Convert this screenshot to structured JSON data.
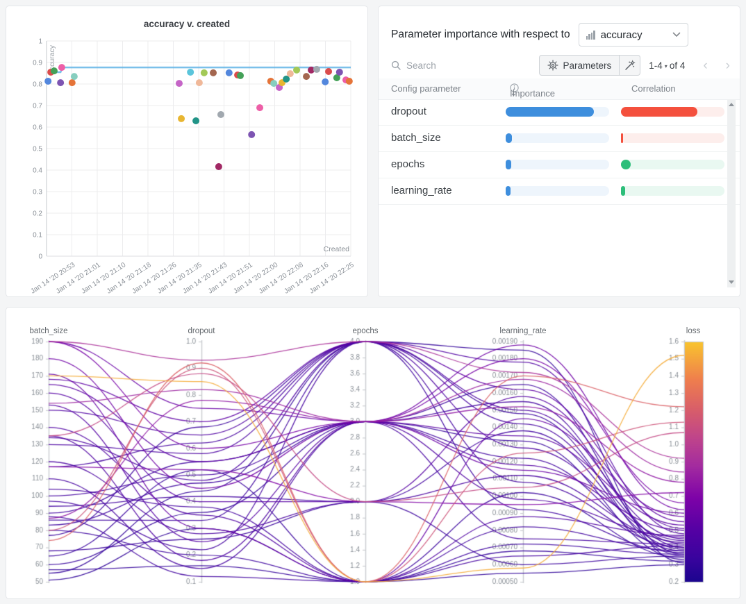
{
  "page": {
    "background": "#f4f5f6"
  },
  "scatter_panel": {
    "title": "accuracy v. created",
    "chart_data": {
      "type": "scatter",
      "title": "accuracy v. created",
      "xlabel": "Created",
      "ylabel": "accuracy",
      "ylim": [
        0,
        1
      ],
      "y_ticks": [
        0,
        0.1,
        0.2,
        0.3,
        0.4,
        0.5,
        0.6,
        0.7,
        0.8,
        0.9,
        1
      ],
      "x_tick_labels": [
        "Jan 14 '20 20:53",
        "Jan 14 '20 21:01",
        "Jan 14 '20 21:10",
        "Jan 14 '20 21:18",
        "Jan 14 '20 21:26",
        "Jan 14 '20 21:35",
        "Jan 14 '20 21:43",
        "Jan 14 '20 21:51",
        "Jan 14 '20 22:00",
        "Jan 14 '20 22:08",
        "Jan 14 '20 22:16",
        "Jan 14 '20 22:25"
      ],
      "best_accuracy_line": {
        "color": "#64b5e6",
        "points": [
          [
            0.012,
            0.855
          ],
          [
            0.046,
            0.855
          ],
          [
            0.052,
            0.877
          ],
          [
            1.0,
            0.877
          ]
        ]
      },
      "points": [
        {
          "x": 0.005,
          "accuracy": 0.813,
          "color": "#5387DD"
        },
        {
          "x": 0.014,
          "accuracy": 0.855,
          "color": "#DB4C4C"
        },
        {
          "x": 0.025,
          "accuracy": 0.861,
          "color": "#44A158"
        },
        {
          "x": 0.05,
          "accuracy": 0.877,
          "color": "#ED5FA7"
        },
        {
          "x": 0.046,
          "accuracy": 0.806,
          "color": "#7D54B2"
        },
        {
          "x": 0.084,
          "accuracy": 0.806,
          "color": "#E57439"
        },
        {
          "x": 0.091,
          "accuracy": 0.835,
          "color": "#87CEBF"
        },
        {
          "x": 0.436,
          "accuracy": 0.803,
          "color": "#C565C7"
        },
        {
          "x": 0.443,
          "accuracy": 0.639,
          "color": "#E8B632"
        },
        {
          "x": 0.491,
          "accuracy": 0.629,
          "color": "#229487"
        },
        {
          "x": 0.473,
          "accuracy": 0.855,
          "color": "#5BC5DB"
        },
        {
          "x": 0.502,
          "accuracy": 0.806,
          "color": "#F0B899"
        },
        {
          "x": 0.518,
          "accuracy": 0.852,
          "color": "#A3C957"
        },
        {
          "x": 0.548,
          "accuracy": 0.852,
          "color": "#A46750"
        },
        {
          "x": 0.573,
          "accuracy": 0.658,
          "color": "#A1A8AF"
        },
        {
          "x": 0.6,
          "accuracy": 0.852,
          "color": "#5387DD"
        },
        {
          "x": 0.628,
          "accuracy": 0.842,
          "color": "#DB4C4C"
        },
        {
          "x": 0.637,
          "accuracy": 0.839,
          "color": "#44A158"
        },
        {
          "x": 0.566,
          "accuracy": 0.416,
          "color": "#A12864"
        },
        {
          "x": 0.701,
          "accuracy": 0.69,
          "color": "#ED5FA7"
        },
        {
          "x": 0.674,
          "accuracy": 0.565,
          "color": "#7D54B2"
        },
        {
          "x": 0.737,
          "accuracy": 0.813,
          "color": "#E57439"
        },
        {
          "x": 0.747,
          "accuracy": 0.803,
          "color": "#87CEBF"
        },
        {
          "x": 0.765,
          "accuracy": 0.784,
          "color": "#C565C7"
        },
        {
          "x": 0.774,
          "accuracy": 0.806,
          "color": "#E8B632"
        },
        {
          "x": 0.788,
          "accuracy": 0.823,
          "color": "#229487"
        },
        {
          "x": 0.801,
          "accuracy": 0.848,
          "color": "#F0B899"
        },
        {
          "x": 0.822,
          "accuracy": 0.865,
          "color": "#A3C957"
        },
        {
          "x": 0.854,
          "accuracy": 0.835,
          "color": "#A46750"
        },
        {
          "x": 0.87,
          "accuracy": 0.865,
          "color": "#A12864"
        },
        {
          "x": 0.888,
          "accuracy": 0.868,
          "color": "#A1A8AF"
        },
        {
          "x": 0.916,
          "accuracy": 0.81,
          "color": "#5387DD"
        },
        {
          "x": 0.927,
          "accuracy": 0.858,
          "color": "#DB4C4C"
        },
        {
          "x": 0.954,
          "accuracy": 0.829,
          "color": "#44A158"
        },
        {
          "x": 0.963,
          "accuracy": 0.855,
          "color": "#7D54B2"
        },
        {
          "x": 0.984,
          "accuracy": 0.819,
          "color": "#ED5FA7"
        },
        {
          "x": 0.995,
          "accuracy": 0.813,
          "color": "#E57439"
        }
      ]
    }
  },
  "importance_panel": {
    "title_prefix": "Parameter importance with respect to",
    "metric_selector": {
      "value": "accuracy"
    },
    "search": {
      "placeholder": "Search"
    },
    "parameters_button": {
      "label": "Parameters"
    },
    "pagination": {
      "range": "1-4",
      "caret": "▾",
      "of": "of 4",
      "prev": "‹",
      "next": "›"
    },
    "table": {
      "columns": [
        "Config parameter",
        "Importance",
        "Correlation"
      ],
      "sort_arrow": "↓",
      "importance_color": "#3e8edd",
      "importance_track": "#eef5fc",
      "positive_color": "#2dbe7a",
      "positive_track": "#e9f8f1",
      "negative_color": "#f4503d",
      "negative_track": "#fdeeec",
      "rows": [
        {
          "name": "dropout",
          "importance": 0.85,
          "correlation": -0.74
        },
        {
          "name": "batch_size",
          "importance": 0.06,
          "correlation": -0.02
        },
        {
          "name": "epochs",
          "importance": 0.055,
          "correlation": 0.095
        },
        {
          "name": "learning_rate",
          "importance": 0.05,
          "correlation": 0.04
        }
      ]
    }
  },
  "pcp_panel": {
    "chart_data": {
      "type": "parallel-coordinates",
      "color_metric": "loss",
      "axes": [
        {
          "name": "batch_size",
          "min": 50,
          "max": 190,
          "tick_step": 10,
          "decimals": 0
        },
        {
          "name": "dropout",
          "min": 0.1,
          "max": 1.0,
          "tick_step": 0.1,
          "decimals": 1
        },
        {
          "name": "epochs",
          "min": 1.0,
          "max": 4.0,
          "tick_step": 0.2,
          "decimals": 1
        },
        {
          "name": "learning_rate",
          "min": 0.0005,
          "max": 0.0019,
          "tick_step": 0.0001,
          "decimals": 5
        },
        {
          "name": "loss",
          "min": 0.2,
          "max": 1.6,
          "tick_step": 0.1,
          "decimals": 1
        }
      ],
      "colormap": [
        [
          0,
          "#1c058f"
        ],
        [
          0.1,
          "#3a049e"
        ],
        [
          0.22,
          "#5601a4"
        ],
        [
          0.35,
          "#7e03a8"
        ],
        [
          0.48,
          "#a32ba0"
        ],
        [
          0.6,
          "#c0458b"
        ],
        [
          0.72,
          "#d95f69"
        ],
        [
          0.84,
          "#ef7e4e"
        ],
        [
          1,
          "#f9c52e"
        ]
      ],
      "runs": [
        [
          170,
          0.85,
          1,
          0.00058,
          1.52
        ],
        [
          74,
          0.92,
          1,
          0.0017,
          1.22
        ],
        [
          80,
          0.9,
          1,
          0.00125,
          1.13
        ],
        [
          135,
          0.88,
          2,
          0.00105,
          1.07
        ],
        [
          190,
          0.93,
          4,
          0.00172,
          0.92
        ],
        [
          154,
          0.82,
          3,
          0.00168,
          0.84
        ],
        [
          87,
          0.78,
          3,
          0.00152,
          0.78
        ],
        [
          117,
          0.52,
          2,
          0.00095,
          0.72
        ],
        [
          190,
          0.6,
          3,
          0.0018,
          0.66
        ],
        [
          180,
          0.45,
          3,
          0.00188,
          0.62
        ],
        [
          190,
          0.75,
          3,
          0.00115,
          0.6
        ],
        [
          171,
          0.3,
          1,
          0.00145,
          0.58
        ],
        [
          168,
          0.7,
          4,
          0.00162,
          0.55
        ],
        [
          165,
          0.55,
          3,
          0.00135,
          0.53
        ],
        [
          160,
          0.4,
          2,
          0.00158,
          0.51
        ],
        [
          153,
          0.25,
          3,
          0.00118,
          0.5
        ],
        [
          150,
          0.65,
          4,
          0.00178,
          0.48
        ],
        [
          140,
          0.35,
          1,
          0.00088,
          0.47
        ],
        [
          135,
          0.18,
          3,
          0.00098,
          0.46
        ],
        [
          134,
          0.48,
          4,
          0.0015,
          0.45
        ],
        [
          130,
          0.58,
          4,
          0.00128,
          0.44
        ],
        [
          120,
          0.28,
          2,
          0.00112,
          0.43
        ],
        [
          117,
          0.62,
          4,
          0.00142,
          0.42
        ],
        [
          110,
          0.15,
          3,
          0.00075,
          0.42
        ],
        [
          104,
          0.38,
          1,
          0.00065,
          0.41
        ],
        [
          100,
          0.5,
          3,
          0.00155,
          0.4
        ],
        [
          97,
          0.22,
          4,
          0.00108,
          0.4
        ],
        [
          94,
          0.42,
          2,
          0.00138,
          0.39
        ],
        [
          90,
          0.55,
          3,
          0.00122,
          0.38
        ],
        [
          88,
          0.12,
          1,
          0.00082,
          0.38
        ],
        [
          86,
          0.33,
          4,
          0.00092,
          0.37
        ],
        [
          83,
          0.47,
          3,
          0.00165,
          0.36
        ],
        [
          80,
          0.2,
          1,
          0.00072,
          0.36
        ],
        [
          77,
          0.68,
          4,
          0.00148,
          0.35
        ],
        [
          68,
          0.26,
          2,
          0.0006,
          0.35
        ],
        [
          65,
          0.52,
          1,
          0.00102,
          0.34
        ],
        [
          60,
          0.36,
          3,
          0.00132,
          0.33
        ],
        [
          57,
          0.16,
          1,
          0.00068,
          0.32
        ],
        [
          55,
          0.44,
          4,
          0.00185,
          0.31
        ],
        [
          51,
          0.3,
          1,
          0.00055,
          0.3
        ]
      ]
    }
  }
}
